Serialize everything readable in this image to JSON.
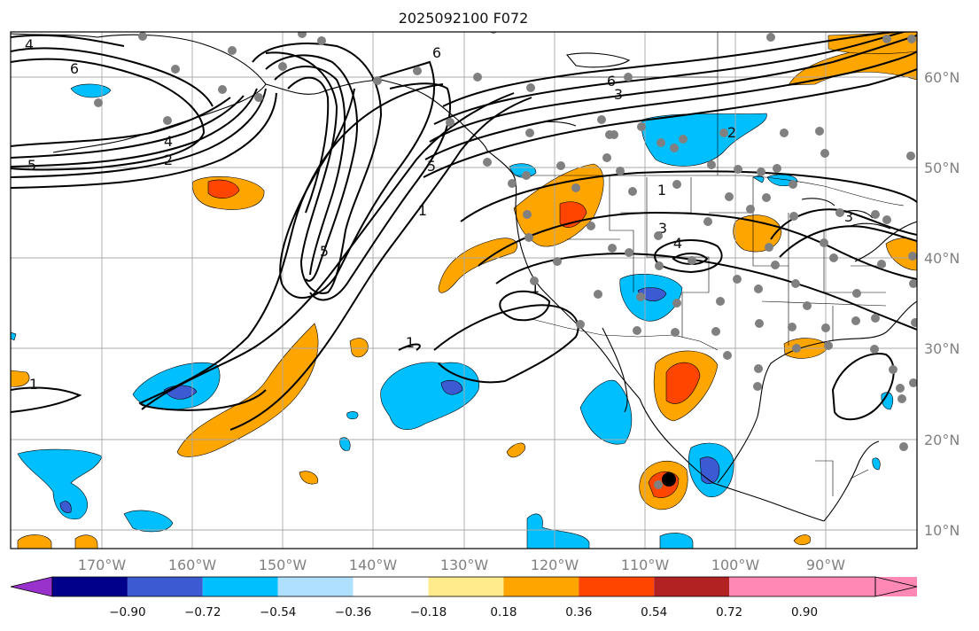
{
  "title": "2025092100 F072",
  "lon_labels": [
    "170°W",
    "160°W",
    "150°W",
    "140°W",
    "130°W",
    "120°W",
    "110°W",
    "100°W",
    "90°W"
  ],
  "lat_labels": [
    "60°N",
    "50°N",
    "40°N",
    "30°N",
    "20°N",
    "10°N"
  ],
  "colorbar": {
    "ticks": [
      "−0.90",
      "−0.72",
      "−0.54",
      "−0.36",
      "−0.18",
      "0.18",
      "0.36",
      "0.54",
      "0.72",
      "0.90"
    ],
    "colors": [
      "#9932cc",
      "#00008b",
      "#3c5ad2",
      "#00bfff",
      "#b0e0ff",
      "#ffffff",
      "#ffeb8c",
      "#ffa500",
      "#ff4500",
      "#b22222",
      "#ff88b4"
    ]
  },
  "contour_labels": [
    "4",
    "6",
    "6",
    "4",
    "3",
    "6",
    "2",
    "5",
    "5",
    "1",
    "1",
    "5",
    "3",
    "1",
    "3",
    "4",
    "1",
    "1",
    "2"
  ],
  "colors": {
    "orange": "#ffa500",
    "red": "#ff4500",
    "blue": "#00bfff",
    "darkblue": "#3c5ad2",
    "station": "#808080"
  }
}
